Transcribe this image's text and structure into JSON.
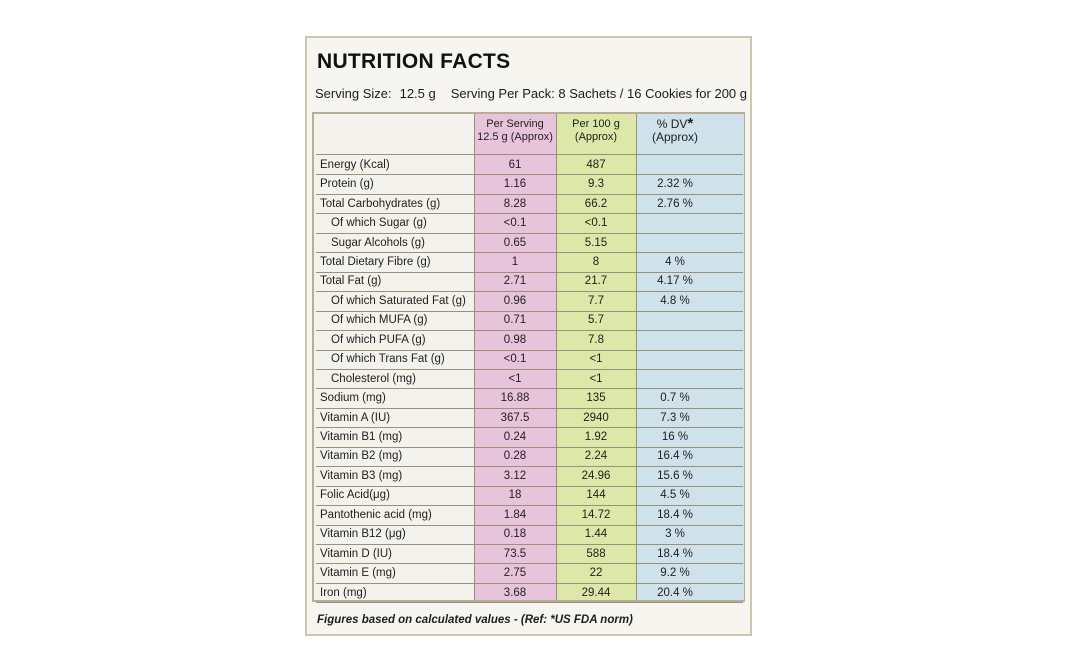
{
  "title": "NUTRITION FACTS",
  "serving": {
    "size_label": "Serving Size:",
    "size_value": "12.5 g",
    "per_pack": "Serving Per Pack: 8 Sachets / 16 Cookies for 200 g"
  },
  "headers": {
    "per_serving_line1": "Per Serving",
    "per_serving_line2": "12.5 g (Approx)",
    "per_100_line1": "Per 100 g",
    "per_100_line2": "(Approx)",
    "dv_line1": "% DV",
    "dv_mark": "*",
    "dv_line2": "(Approx)"
  },
  "rows": [
    {
      "name": "Energy (Kcal)",
      "indent": false,
      "per_serving": "61",
      "per_100g": "487",
      "dv": ""
    },
    {
      "name": "Protein (g)",
      "indent": false,
      "per_serving": "1.16",
      "per_100g": "9.3",
      "dv": "2.32 %"
    },
    {
      "name": "Total Carbohydrates (g)",
      "indent": false,
      "per_serving": "8.28",
      "per_100g": "66.2",
      "dv": "2.76 %"
    },
    {
      "name": "Of which Sugar (g)",
      "indent": true,
      "per_serving": "<0.1",
      "per_100g": "<0.1",
      "dv": ""
    },
    {
      "name": "Sugar Alcohols (g)",
      "indent": true,
      "per_serving": "0.65",
      "per_100g": "5.15",
      "dv": ""
    },
    {
      "name": "Total Dietary Fibre (g)",
      "indent": false,
      "per_serving": "1",
      "per_100g": "8",
      "dv": "4 %"
    },
    {
      "name": "Total Fat (g)",
      "indent": false,
      "per_serving": "2.71",
      "per_100g": "21.7",
      "dv": "4.17 %"
    },
    {
      "name": "Of which Saturated Fat (g)",
      "indent": true,
      "per_serving": "0.96",
      "per_100g": "7.7",
      "dv": "4.8 %"
    },
    {
      "name": "Of which MUFA (g)",
      "indent": true,
      "per_serving": "0.71",
      "per_100g": "5.7",
      "dv": ""
    },
    {
      "name": "Of which PUFA (g)",
      "indent": true,
      "per_serving": "0.98",
      "per_100g": "7.8",
      "dv": ""
    },
    {
      "name": "Of which Trans Fat (g)",
      "indent": true,
      "per_serving": "<0.1",
      "per_100g": "<1",
      "dv": ""
    },
    {
      "name": "Cholesterol (mg)",
      "indent": true,
      "per_serving": "<1",
      "per_100g": "<1",
      "dv": ""
    },
    {
      "name": "Sodium (mg)",
      "indent": false,
      "per_serving": "16.88",
      "per_100g": "135",
      "dv": "0.7 %"
    },
    {
      "name": "Vitamin A (IU)",
      "indent": false,
      "per_serving": "367.5",
      "per_100g": "2940",
      "dv": "7.3 %"
    },
    {
      "name": "Vitamin B1 (mg)",
      "indent": false,
      "per_serving": "0.24",
      "per_100g": "1.92",
      "dv": "16 %"
    },
    {
      "name": "Vitamin B2 (mg)",
      "indent": false,
      "per_serving": "0.28",
      "per_100g": "2.24",
      "dv": "16.4 %"
    },
    {
      "name": "Vitamin  B3 (mg)",
      "indent": false,
      "per_serving": "3.12",
      "per_100g": "24.96",
      "dv": "15.6 %"
    },
    {
      "name": "Folic Acid(μg)",
      "indent": false,
      "per_serving": "18",
      "per_100g": "144",
      "dv": "4.5 %"
    },
    {
      "name": "Pantothenic acid (mg)",
      "indent": false,
      "per_serving": "1.84",
      "per_100g": "14.72",
      "dv": "18.4 %"
    },
    {
      "name": "Vitamin  B12 (μg)",
      "indent": false,
      "per_serving": "0.18",
      "per_100g": "1.44",
      "dv": "3 %"
    },
    {
      "name": "Vitamin D (IU)",
      "indent": false,
      "per_serving": "73.5",
      "per_100g": "588",
      "dv": "18.4 %"
    },
    {
      "name": "Vitamin E (mg)",
      "indent": false,
      "per_serving": "2.75",
      "per_100g": "22",
      "dv": "9.2 %"
    },
    {
      "name": "Iron (mg)",
      "indent": false,
      "per_serving": "3.68",
      "per_100g": "29.44",
      "dv": "20.4 %"
    }
  ],
  "footnote": "Figures based on calculated values - (Ref: *US FDA norm)",
  "colors": {
    "per_serving_bg": "#e8c4dc",
    "per_100g_bg": "#dde7a8",
    "dv_bg": "#cfe1ea",
    "card_bg": "#f7f5ef"
  }
}
